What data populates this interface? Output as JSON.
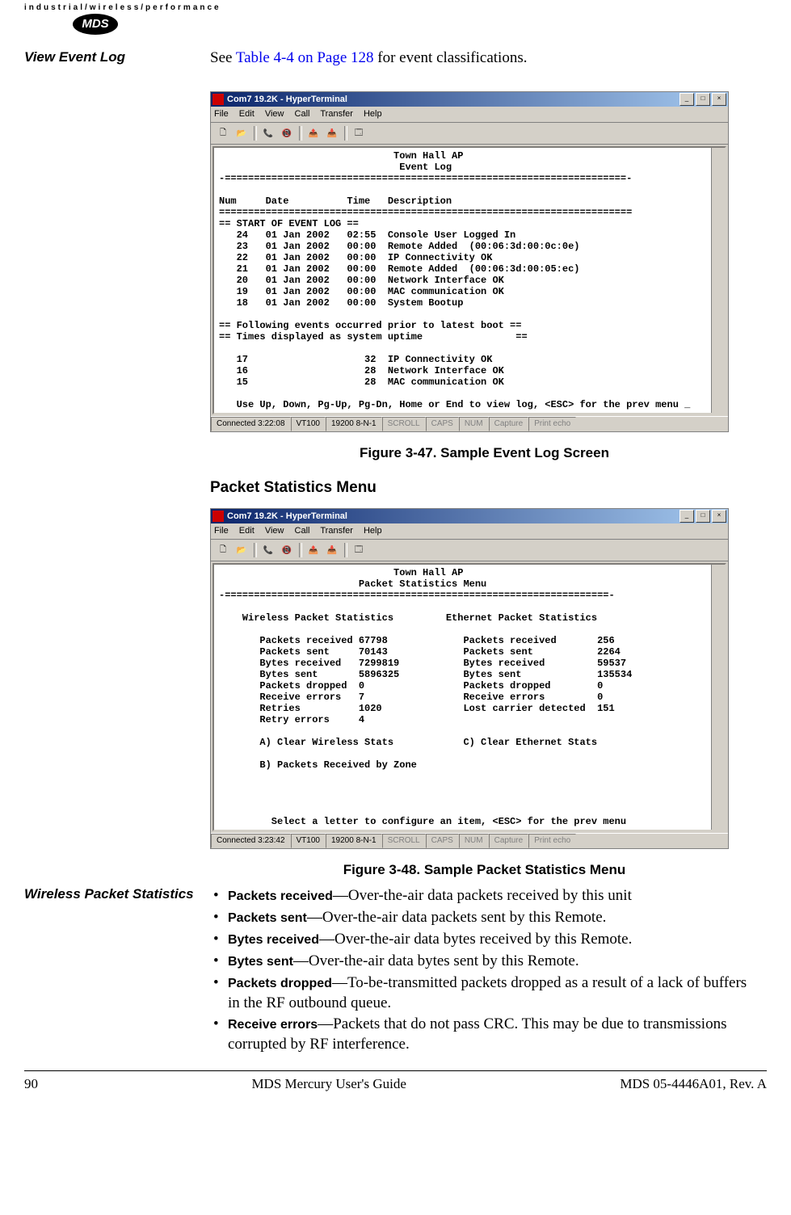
{
  "header": {
    "tagline": "industrial/wireless/performance",
    "logo": "MDS"
  },
  "section1": {
    "left_heading": "View Event Log",
    "intro_prefix": "See ",
    "intro_link": "Table 4-4 on Page 128",
    "intro_suffix": " for event classifications."
  },
  "terminal_common": {
    "title": "Com7 19.2K - HyperTerminal",
    "menu_file": "File",
    "menu_edit": "Edit",
    "menu_view": "View",
    "menu_call": "Call",
    "menu_transfer": "Transfer",
    "menu_help": "Help",
    "min_btn": "_",
    "max_btn": "□",
    "close_btn": "×",
    "status_vt": "VT100",
    "status_baud": "19200 8-N-1",
    "status_scroll": "SCROLL",
    "status_caps": "CAPS",
    "status_num": "NUM",
    "status_capture": "Capture",
    "status_print": "Print echo"
  },
  "terminal1": {
    "status_conn": "Connected 3:22:08",
    "body": "                              Town Hall AP\n                               Event Log\n-=====================================================================-\n\nNum     Date          Time   Description\n=======================================================================\n== START OF EVENT LOG ==\n   24   01 Jan 2002   02:55  Console User Logged In\n   23   01 Jan 2002   00:00  Remote Added  (00:06:3d:00:0c:0e)\n   22   01 Jan 2002   00:00  IP Connectivity OK\n   21   01 Jan 2002   00:00  Remote Added  (00:06:3d:00:05:ec)\n   20   01 Jan 2002   00:00  Network Interface OK\n   19   01 Jan 2002   00:00  MAC communication OK\n   18   01 Jan 2002   00:00  System Bootup\n\n== Following events occurred prior to latest boot ==\n== Times displayed as system uptime                ==\n\n   17                    32  IP Connectivity OK\n   16                    28  Network Interface OK\n   15                    28  MAC communication OK\n\n   Use Up, Down, Pg-Up, Pg-Dn, Home or End to view log, <ESC> for the prev menu _"
  },
  "caption1": "Figure 3-47. Sample Event Log Screen",
  "section2_heading": "Packet Statistics Menu",
  "terminal2": {
    "status_conn": "Connected 3:23:42",
    "body": "                              Town Hall AP\n                        Packet Statistics Menu\n-==================================================================-\n\n    Wireless Packet Statistics         Ethernet Packet Statistics\n\n       Packets received 67798             Packets received       256\n       Packets sent     70143             Packets sent           2264\n       Bytes received   7299819           Bytes received         59537\n       Bytes sent       5896325           Bytes sent             135534\n       Packets dropped  0                 Packets dropped        0\n       Receive errors   7                 Receive errors         0\n       Retries          1020              Lost carrier detected  151\n       Retry errors     4\n\n       A) Clear Wireless Stats            C) Clear Ethernet Stats\n\n       B) Packets Received by Zone\n\n\n\n\n         Select a letter to configure an item, <ESC> for the prev menu"
  },
  "caption2": "Figure 3-48. Sample Packet Statistics Menu",
  "section3": {
    "left_heading": "Wireless Packet Statistics",
    "bullets": [
      {
        "term": "Packets received",
        "desc": "—Over-the-air data packets received by this unit"
      },
      {
        "term": "Packets sent",
        "desc": "—Over-the-air data packets sent by this Remote."
      },
      {
        "term": "Bytes received",
        "desc": "—Over-the-air data bytes received by this Remote."
      },
      {
        "term": "Bytes sent",
        "desc": "—Over-the-air data bytes sent by this Remote."
      },
      {
        "term": "Packets dropped",
        "desc": "—To-be-transmitted packets dropped as a result of a lack of buffers in the RF outbound queue."
      },
      {
        "term": "Receive errors",
        "desc": "—Packets that do not pass CRC. This may be due to transmissions corrupted by RF interference."
      }
    ]
  },
  "footer": {
    "page_num": "90",
    "center": "MDS Mercury User's Guide",
    "right": "MDS 05-4446A01, Rev. A"
  },
  "colors": {
    "link": "#0000ee",
    "titlebar_start": "#0a246a",
    "titlebar_end": "#a6caf0",
    "win_bg": "#d4d0c8"
  }
}
